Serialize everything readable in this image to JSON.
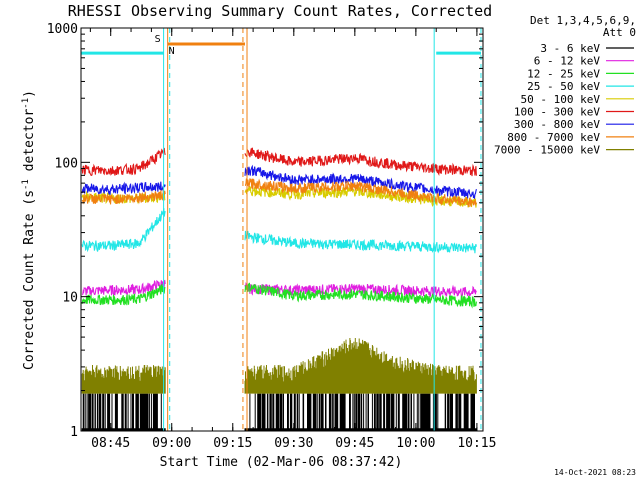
{
  "chart_data": {
    "type": "line",
    "title": "RHESSI Observing Summary Count Rates, Corrected",
    "ylabel": "Corrected Count Rate (s",
    "ylabel_sup": "-1",
    "ylabel_mid": " detector",
    "ylabel_sup2": "-1",
    "ylabel_end": ")",
    "xlabel": "Start Time (02-Mar-06 08:37:42)",
    "ylog": true,
    "ylim": [
      1,
      1000
    ],
    "xlim": [
      "08:37:42",
      "10:16:30"
    ],
    "x_ticks": [
      "08:45",
      "09:00",
      "09:15",
      "09:30",
      "09:45",
      "10:00",
      "10:15"
    ],
    "y_ticks": [
      "1",
      "10",
      "100",
      "1000"
    ],
    "legend_header": [
      "Det 1,3,4,5,6,9,",
      "Att 0"
    ],
    "legend_position": "right",
    "timestamp": "14-Oct-2021 08:23",
    "flag_labels": [
      "S",
      "N"
    ],
    "gap": [
      "08:59:00",
      "09:18:00"
    ],
    "series": [
      {
        "name": "3 - 6 keV",
        "color": "#000000",
        "x": [
          "08:38",
          "08:45",
          "08:52",
          "08:58",
          "09:19",
          "09:30",
          "09:45",
          "09:55",
          "10:05",
          "10:15"
        ],
        "values": [
          1.5,
          1.5,
          1.5,
          1.5,
          1.5,
          1.5,
          1.6,
          1.5,
          1.5,
          1.5
        ]
      },
      {
        "name": "6 - 12 keV",
        "color": "#e020e0",
        "x": [
          "08:38",
          "08:45",
          "08:52",
          "08:58",
          "09:19",
          "09:30",
          "09:45",
          "09:55",
          "10:05",
          "10:15"
        ],
        "values": [
          11,
          11.2,
          11.3,
          12.5,
          11.5,
          11.2,
          11.5,
          11.2,
          11,
          10.8
        ]
      },
      {
        "name": "12 - 25 keV",
        "color": "#22e022",
        "x": [
          "08:38",
          "08:45",
          "08:52",
          "08:58",
          "09:19",
          "09:30",
          "09:45",
          "09:55",
          "10:05",
          "10:15"
        ],
        "values": [
          9.5,
          9.5,
          9.6,
          11.5,
          11.8,
          10.2,
          10.5,
          10,
          9.5,
          9.2
        ]
      },
      {
        "name": "25 - 50 keV",
        "color": "#22e6e6",
        "x": [
          "08:38",
          "08:45",
          "08:52",
          "08:58",
          "09:19",
          "09:30",
          "09:45",
          "09:55",
          "10:05",
          "10:15"
        ],
        "values": [
          24,
          24,
          25,
          42,
          28,
          25,
          24.5,
          24,
          23.5,
          23
        ]
      },
      {
        "name": "50 - 100 keV",
        "color": "#d8cc00",
        "x": [
          "08:38",
          "08:45",
          "08:52",
          "08:58",
          "09:19",
          "09:30",
          "09:45",
          "09:55",
          "10:05",
          "10:15"
        ],
        "values": [
          55,
          54,
          54,
          56,
          62,
          58,
          61,
          56,
          52,
          50
        ]
      },
      {
        "name": "100 - 300 keV",
        "color": "#e01818",
        "x": [
          "08:38",
          "08:45",
          "08:52",
          "08:58",
          "09:19",
          "09:30",
          "09:45",
          "09:55",
          "10:05",
          "10:15"
        ],
        "values": [
          88,
          87,
          90,
          118,
          120,
          100,
          108,
          96,
          90,
          86
        ]
      },
      {
        "name": "300 - 800 keV",
        "color": "#1818e8",
        "x": [
          "08:38",
          "08:45",
          "08:52",
          "08:58",
          "09:19",
          "09:30",
          "09:45",
          "09:55",
          "10:05",
          "10:15"
        ],
        "values": [
          64,
          63,
          65,
          66,
          88,
          74,
          76,
          68,
          62,
          58
        ]
      },
      {
        "name": "800 - 7000 keV",
        "color": "#f08010",
        "x": [
          "08:38",
          "08:45",
          "08:52",
          "08:58",
          "09:19",
          "09:30",
          "09:45",
          "09:55",
          "10:05",
          "10:15"
        ],
        "values": [
          54,
          53,
          55,
          57,
          70,
          64,
          67,
          60,
          54,
          50
        ]
      },
      {
        "name": "7000 - 15000 keV",
        "color": "#808000",
        "x": [
          "08:38",
          "08:45",
          "08:52",
          "08:58",
          "09:19",
          "09:30",
          "09:45",
          "09:55",
          "10:05",
          "10:15"
        ],
        "values": [
          2.7,
          2.7,
          2.7,
          2.7,
          2.7,
          2.7,
          4.5,
          3.2,
          2.7,
          2.7
        ]
      }
    ],
    "saa_flag": {
      "label": "S",
      "color": "#f08010",
      "value": 760,
      "x_start": "08:59:00",
      "x_end": "09:18:00"
    },
    "night_flag": {
      "label": "N",
      "color": "#22e6e6",
      "value": 650,
      "segments": [
        [
          "08:37:42",
          "08:58:00"
        ],
        [
          "10:05:00",
          "10:16:00"
        ]
      ]
    },
    "vlines": [
      {
        "x": "08:58:00",
        "color": "#22e6e6",
        "style": "solid"
      },
      {
        "x": "08:59:30",
        "color": "#22e6e6",
        "style": "dashed"
      },
      {
        "x": "08:59:00",
        "color": "#f08010",
        "style": "solid"
      },
      {
        "x": "09:17:30",
        "color": "#f08010",
        "style": "dashed"
      },
      {
        "x": "09:18:30",
        "color": "#f08010",
        "style": "solid"
      },
      {
        "x": "10:04:30",
        "color": "#22e6e6",
        "style": "solid"
      },
      {
        "x": "10:16:00",
        "color": "#22e6e6",
        "style": "dashed"
      }
    ]
  }
}
